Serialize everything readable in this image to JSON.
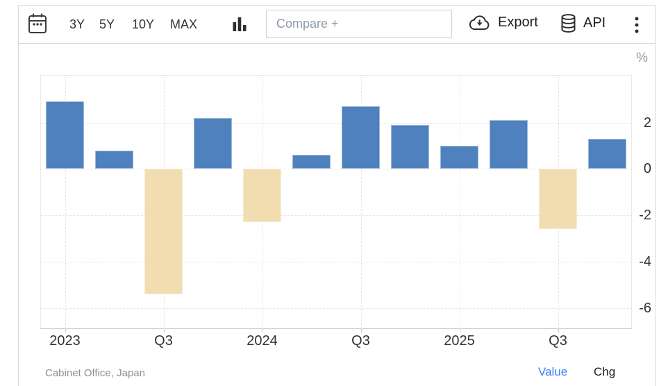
{
  "toolbar": {
    "ranges": [
      "3Y",
      "5Y",
      "10Y",
      "MAX"
    ],
    "compare_placeholder": "Compare +",
    "export_label": "Export",
    "api_label": "API"
  },
  "chart_data": {
    "type": "bar",
    "title": "",
    "xlabel": "",
    "ylabel": "%",
    "categories": [
      "2023 Q1",
      "2023 Q2",
      "2023 Q3",
      "2023 Q4",
      "2024 Q1",
      "2024 Q2",
      "2024 Q3",
      "2024 Q4",
      "2025 Q1",
      "2025 Q2",
      "2025 Q3",
      "2025 Q4"
    ],
    "values": [
      2.9,
      0.8,
      -5.4,
      2.2,
      -2.3,
      0.6,
      2.7,
      1.9,
      1.0,
      2.1,
      -2.6,
      1.3
    ],
    "x_ticks": [
      {
        "index": 0,
        "label": "2023"
      },
      {
        "index": 2,
        "label": "Q3"
      },
      {
        "index": 4,
        "label": "2024"
      },
      {
        "index": 6,
        "label": "Q3"
      },
      {
        "index": 8,
        "label": "2025"
      },
      {
        "index": 10,
        "label": "Q3"
      }
    ],
    "y_ticks": [
      2,
      0,
      -2,
      -4,
      -6
    ],
    "ylim": [
      -6.9,
      4.05
    ],
    "grid": true,
    "legend": false
  },
  "footer": {
    "source": "Cabinet Office, Japan",
    "value_label": "Value",
    "chg_label": "Chg"
  },
  "colors": {
    "bar_positive": "#4E81BD",
    "bar_negative": "#F2DDB0",
    "value_active": "#3B82F6"
  }
}
